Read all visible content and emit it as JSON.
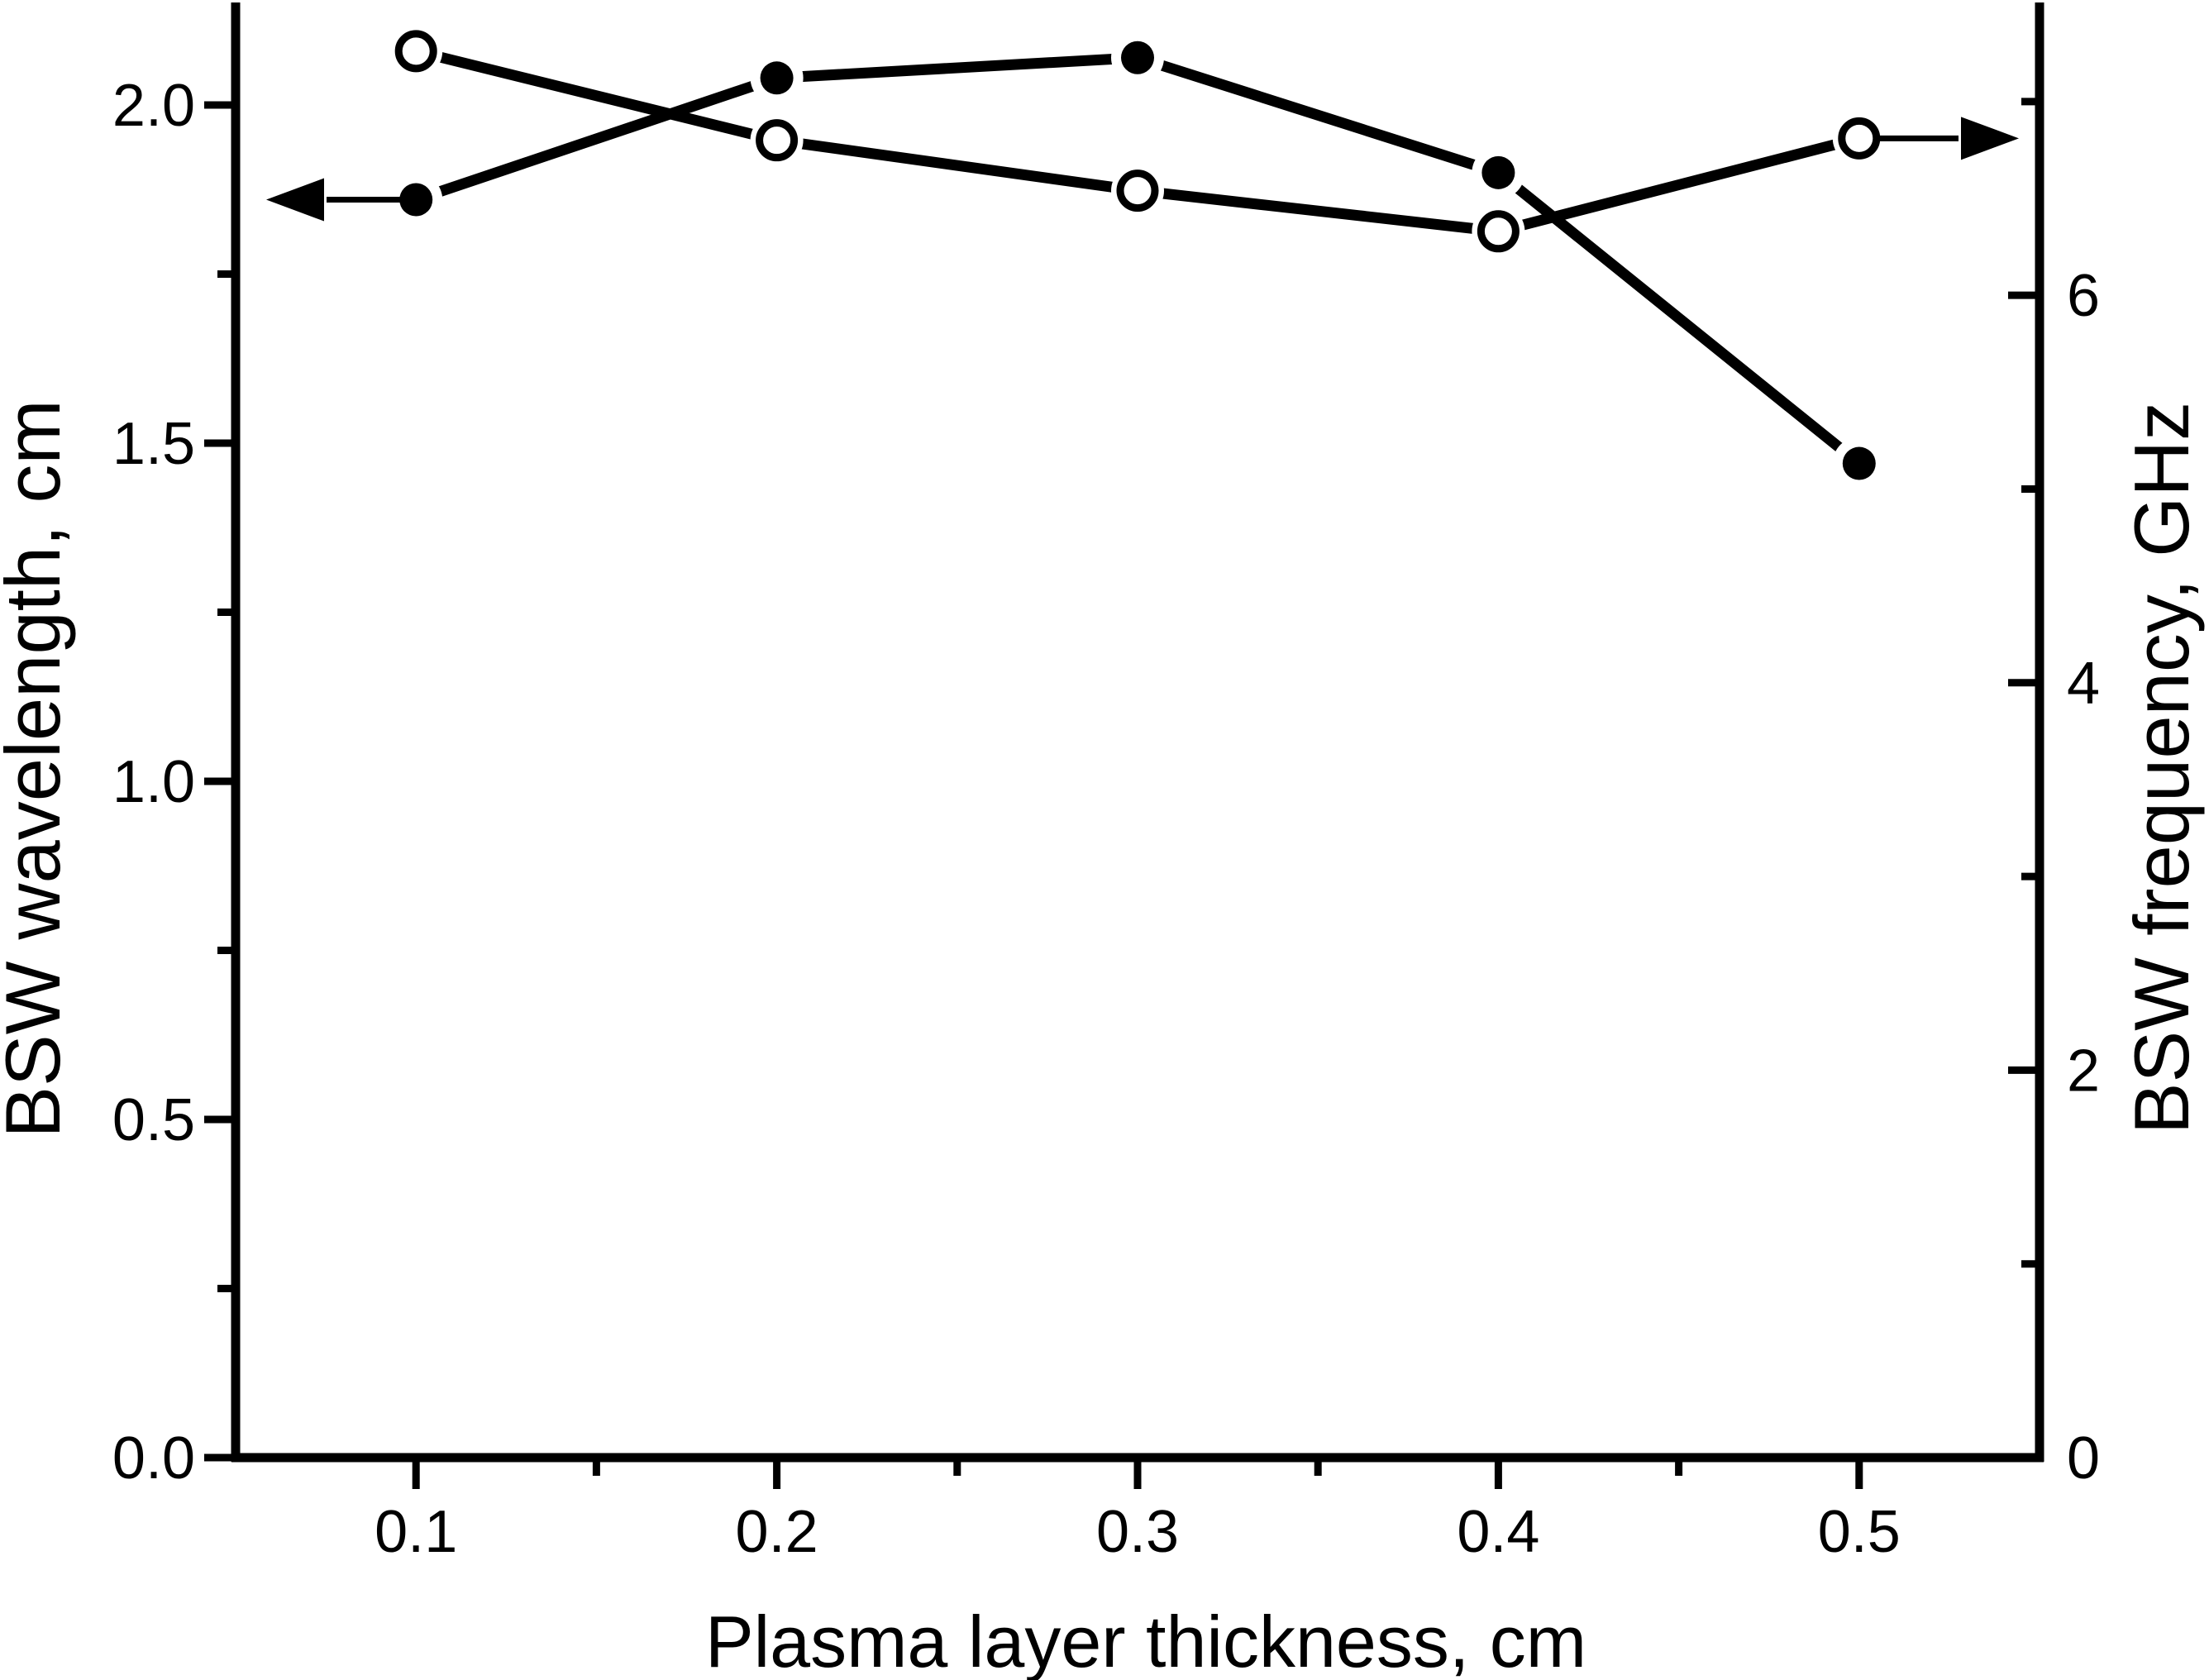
{
  "colors": {
    "background": "#ffffff",
    "ink": "#000000"
  },
  "chart_data": {
    "type": "line",
    "title": "",
    "xlabel": "Plasma layer thickness, cm",
    "ylabel_left": "BSW wavelength, cm",
    "ylabel_right": "BSW frequency, GHz",
    "x": [
      0.1,
      0.2,
      0.3,
      0.4,
      0.5
    ],
    "series": [
      {
        "name": "BSW wavelength",
        "axis": "left",
        "marker": "filled-circle",
        "values": [
          1.86,
          2.04,
          2.07,
          1.9,
          1.47
        ]
      },
      {
        "name": "BSW frequency",
        "axis": "right",
        "marker": "open-circle",
        "values": [
          7.26,
          6.8,
          6.54,
          6.33,
          6.81
        ]
      }
    ],
    "axes": {
      "x": {
        "min": 0.05,
        "max": 0.55,
        "major_ticks": [
          0.1,
          0.2,
          0.3,
          0.4,
          0.5
        ],
        "tick_labels": [
          "0.1",
          "0.2",
          "0.3",
          "0.4",
          "0.5"
        ],
        "minor_ticks": [
          0.15,
          0.25,
          0.35,
          0.45
        ]
      },
      "left": {
        "min": 0,
        "max": 2.1455,
        "major_ticks": [
          0.0,
          0.5,
          1.0,
          1.5,
          2.0
        ],
        "tick_labels": [
          "0.0",
          "0.5",
          "1.0",
          "1.5",
          "2.0"
        ],
        "minor_ticks": [
          0.25,
          0.75,
          1.25,
          1.75
        ]
      },
      "right": {
        "min": 0,
        "max": 7.49,
        "major_ticks": [
          0,
          2,
          4,
          6
        ],
        "tick_labels": [
          "0",
          "2",
          "4",
          "6"
        ],
        "minor_ticks": [
          1,
          3,
          5,
          7
        ]
      }
    },
    "annotations": [
      {
        "type": "axis-arrow",
        "direction": "left",
        "series_index": 0,
        "point_index": 0
      },
      {
        "type": "axis-arrow",
        "direction": "right",
        "series_index": 1,
        "point_index": 4
      }
    ],
    "grid": false,
    "legend": false
  }
}
